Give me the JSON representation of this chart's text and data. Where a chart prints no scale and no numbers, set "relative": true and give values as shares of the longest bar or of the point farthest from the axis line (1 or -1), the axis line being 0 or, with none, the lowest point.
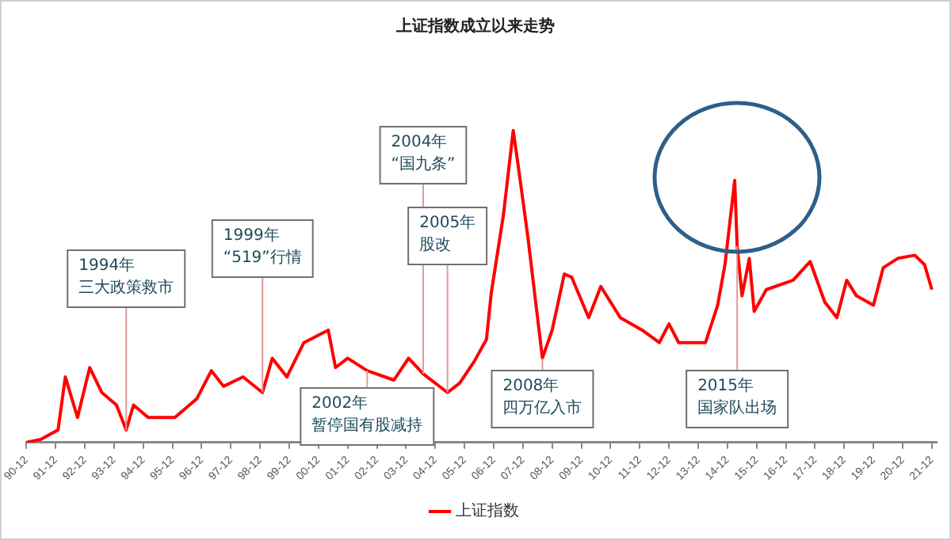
{
  "chart_data": {
    "type": "line",
    "title": "上证指数成立以来走势",
    "relative": true,
    "legend": "bottom",
    "marker": "none",
    "xlim": [
      "1990-12",
      "2022-02"
    ],
    "xticks": [
      {
        "value": "1990-12",
        "label": "90-12"
      },
      {
        "value": "1991-12",
        "label": "91-12"
      },
      {
        "value": "1992-12",
        "label": "92-12"
      },
      {
        "value": "1993-12",
        "label": "93-12"
      },
      {
        "value": "1994-12",
        "label": "94-12"
      },
      {
        "value": "1995-12",
        "label": "95-12"
      },
      {
        "value": "1996-12",
        "label": "96-12"
      },
      {
        "value": "1997-12",
        "label": "97-12"
      },
      {
        "value": "1998-12",
        "label": "98-12"
      },
      {
        "value": "1999-12",
        "label": "99-12"
      },
      {
        "value": "2000-12",
        "label": "00-12"
      },
      {
        "value": "2001-12",
        "label": "01-12"
      },
      {
        "value": "2002-12",
        "label": "02-12"
      },
      {
        "value": "2003-12",
        "label": "03-12"
      },
      {
        "value": "2004-12",
        "label": "04-12"
      },
      {
        "value": "2005-12",
        "label": "05-12"
      },
      {
        "value": "2006-12",
        "label": "06-12"
      },
      {
        "value": "2007-12",
        "label": "07-12"
      },
      {
        "value": "2008-12",
        "label": "08-12"
      },
      {
        "value": "2009-12",
        "label": "09-12"
      },
      {
        "value": "2010-12",
        "label": "10-12"
      },
      {
        "value": "2011-12",
        "label": "11-12"
      },
      {
        "value": "2012-12",
        "label": "12-12"
      },
      {
        "value": "2013-12",
        "label": "13-12"
      },
      {
        "value": "2014-12",
        "label": "14-12"
      },
      {
        "value": "2015-12",
        "label": "15-12"
      },
      {
        "value": "2016-12",
        "label": "16-12"
      },
      {
        "value": "2017-12",
        "label": "17-12"
      },
      {
        "value": "2018-12",
        "label": "18-12"
      },
      {
        "value": "2019-12",
        "label": "19-12"
      },
      {
        "value": "2020-12",
        "label": "20-12"
      },
      {
        "value": "2021-12",
        "label": "21-12"
      }
    ],
    "series": [
      {
        "name": "上证指数",
        "color": "#ff0000",
        "x": [
          "1990-12",
          "1991-06",
          "1992-01",
          "1992-04",
          "1992-09",
          "1993-02",
          "1993-07",
          "1994-01",
          "1994-05",
          "1994-08",
          "1995-02",
          "1996-01",
          "1996-10",
          "1997-04",
          "1997-09",
          "1998-05",
          "1999-01",
          "1999-05",
          "1999-11",
          "2000-06",
          "2001-04",
          "2001-07",
          "2001-12",
          "2002-08",
          "2003-07",
          "2004-01",
          "2004-07",
          "2005-05",
          "2005-10",
          "2006-04",
          "2006-09",
          "2006-11",
          "2007-04",
          "2007-08",
          "2007-10",
          "2008-02",
          "2008-08",
          "2008-12",
          "2009-05",
          "2009-08",
          "2010-03",
          "2010-08",
          "2011-04",
          "2012-01",
          "2012-08",
          "2012-12",
          "2013-04",
          "2014-03",
          "2014-08",
          "2014-11",
          "2015-03",
          "2015-04",
          "2015-06",
          "2015-09",
          "2015-11",
          "2016-04",
          "2017-03",
          "2017-10",
          "2018-04",
          "2018-09",
          "2019-01",
          "2019-05",
          "2019-12",
          "2020-04",
          "2020-10",
          "2021-05",
          "2021-09",
          "2021-12"
        ],
        "values": [
          0,
          0.01,
          0.04,
          0.21,
          0.08,
          0.24,
          0.16,
          0.12,
          0.04,
          0.12,
          0.08,
          0.08,
          0.14,
          0.23,
          0.18,
          0.21,
          0.16,
          0.27,
          0.21,
          0.32,
          0.36,
          0.24,
          0.27,
          0.23,
          0.2,
          0.27,
          0.22,
          0.16,
          0.19,
          0.26,
          0.33,
          0.48,
          0.73,
          1,
          0.89,
          0.66,
          0.27,
          0.36,
          0.54,
          0.53,
          0.4,
          0.5,
          0.4,
          0.36,
          0.32,
          0.38,
          0.32,
          0.32,
          0.44,
          0.57,
          0.84,
          0.63,
          0.47,
          0.59,
          0.42,
          0.49,
          0.52,
          0.58,
          0.45,
          0.4,
          0.52,
          0.47,
          0.44,
          0.56,
          0.59,
          0.6,
          0.57,
          0.49
        ]
      }
    ],
    "annotations": [
      {
        "text": "1994年三大政策救市",
        "x": "1994-05",
        "y": 0.04
      },
      {
        "text": "1999年“519”行情",
        "x": "1999-01",
        "y": 0.16
      },
      {
        "text": "2002年暂停国有股减持",
        "x": "2002-08",
        "y": 0.23
      },
      {
        "text": "2004年“国九条”",
        "x": "2004-07",
        "y": 0.22
      },
      {
        "text": "2005年股改",
        "x": "2005-05",
        "y": 0.16
      },
      {
        "text": "2008年四万亿入市",
        "x": "2008-08",
        "y": 0.27
      },
      {
        "text": "2015年国家队出场",
        "x": "2015-04",
        "y": 0.63
      }
    ]
  }
}
